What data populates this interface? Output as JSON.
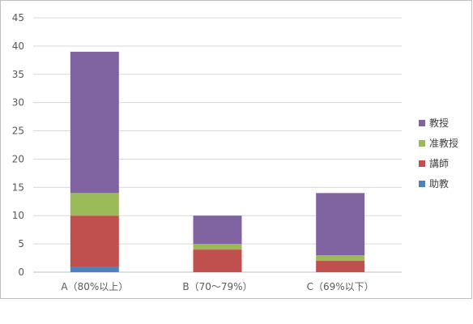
{
  "chart_data": {
    "type": "bar",
    "stacked": true,
    "categories": [
      "A（80%以上）",
      "B（70～79%）",
      "C（69%以下）"
    ],
    "series": [
      {
        "name": "助教",
        "color": "#4f81bd",
        "values": [
          1,
          0,
          0
        ]
      },
      {
        "name": "講師",
        "color": "#c0504d",
        "values": [
          9,
          4,
          2
        ]
      },
      {
        "name": "准教授",
        "color": "#9bbb59",
        "values": [
          4,
          1,
          1
        ]
      },
      {
        "name": "教授",
        "color": "#8064a2",
        "values": [
          25,
          5,
          11
        ]
      }
    ],
    "ylim": [
      0,
      45
    ],
    "ytick_step": 5,
    "grid": true,
    "legend_position": "right",
    "legend_order": [
      "教授",
      "准教授",
      "講師",
      "助教"
    ]
  }
}
